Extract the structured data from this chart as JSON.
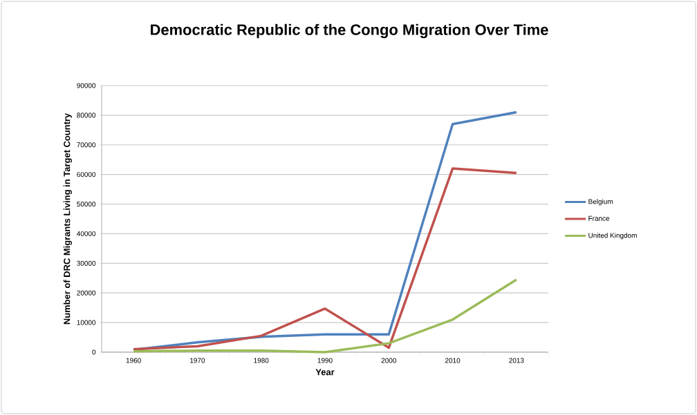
{
  "chart_data": {
    "type": "line",
    "title": "Democratic Republic of the Congo Migration Over Time",
    "xlabel": "Year",
    "ylabel": "Number of DRC Migrants Living in  Target Country",
    "categories": [
      "1960",
      "1970",
      "1980",
      "1990",
      "2000",
      "2010",
      "2013"
    ],
    "series": [
      {
        "name": "Belgium",
        "color": "#4f81bd",
        "values": [
          800,
          3300,
          5200,
          6000,
          6000,
          77000,
          81000
        ]
      },
      {
        "name": "France",
        "color": "#c0504d",
        "values": [
          1000,
          2000,
          5500,
          14700,
          1500,
          62000,
          60500
        ]
      },
      {
        "name": "United Kingdom",
        "color": "#9bbb59",
        "values": [
          300,
          500,
          500,
          0,
          3000,
          11000,
          24500
        ]
      }
    ],
    "ylim": [
      0,
      90000
    ],
    "yticks": [
      0,
      10000,
      20000,
      30000,
      40000,
      50000,
      60000,
      70000,
      80000,
      90000
    ],
    "grid": "y",
    "legend": "right",
    "marker": "none",
    "line_style": "solid"
  }
}
